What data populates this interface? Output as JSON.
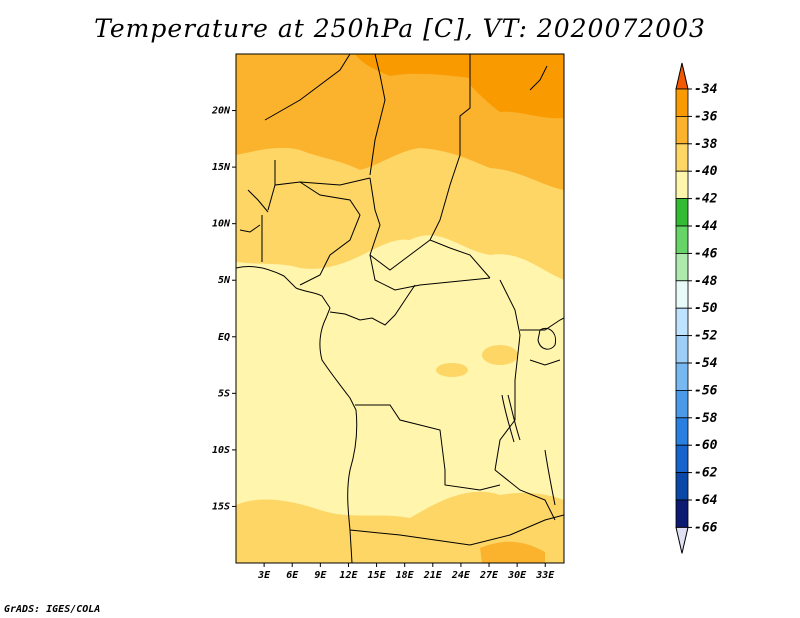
{
  "title": "Temperature at 250hPa [C], VT: 2020072003",
  "credit": "GrADS: IGES/COLA",
  "lat_ticks": [
    "20N",
    "15N",
    "10N",
    "5N",
    "EQ",
    "5S",
    "10S",
    "15S"
  ],
  "lon_ticks": [
    "3E",
    "6E",
    "9E",
    "12E",
    "15E",
    "18E",
    "21E",
    "24E",
    "27E",
    "30E",
    "33E"
  ],
  "colorbar": {
    "labels": [
      "-34",
      "-36",
      "-38",
      "-40",
      "-42",
      "-44",
      "-46",
      "-48",
      "-50",
      "-52",
      "-54",
      "-56",
      "-58",
      "-60",
      "-62",
      "-64",
      "-66"
    ],
    "colors": [
      "#f35a00",
      "#f99b00",
      "#fbb32e",
      "#fdd666",
      "#fff5ad",
      "#33bb33",
      "#66d466",
      "#aee9ae",
      "#e8fbf8",
      "#bfe2ff",
      "#9dcef8",
      "#78b8f0",
      "#4a9ae8",
      "#2a80e0",
      "#1664cc",
      "#0a48a8",
      "#0c1a72",
      "#e0e0f5"
    ],
    "top_color": "#f35a00",
    "bottom_color": "#e0e0f5"
  },
  "chart_data": {
    "type": "heatmap",
    "title": "Temperature at 250hPa [C], VT: 2020072003",
    "x_range_deg_east": [
      0,
      35
    ],
    "y_range_deg_north": [
      -20,
      25
    ],
    "x_ticks": [
      3,
      6,
      9,
      12,
      15,
      18,
      21,
      24,
      27,
      30,
      33
    ],
    "y_ticks": [
      20,
      15,
      10,
      5,
      0,
      -5,
      -10,
      -15
    ],
    "levels": [
      -66,
      -64,
      -62,
      -60,
      -58,
      -56,
      -54,
      -52,
      -50,
      -48,
      -46,
      -44,
      -42,
      -40,
      -38,
      -36,
      -34
    ],
    "field_description_levels": {
      "north_of_20N": "-38 to -36",
      "15N_to_20N": "-40 to -38",
      "5N_to_15N": "-42 to -40",
      "equator_and_south": "-44 to -42",
      "south_of_15S": "-42 to -40"
    }
  }
}
